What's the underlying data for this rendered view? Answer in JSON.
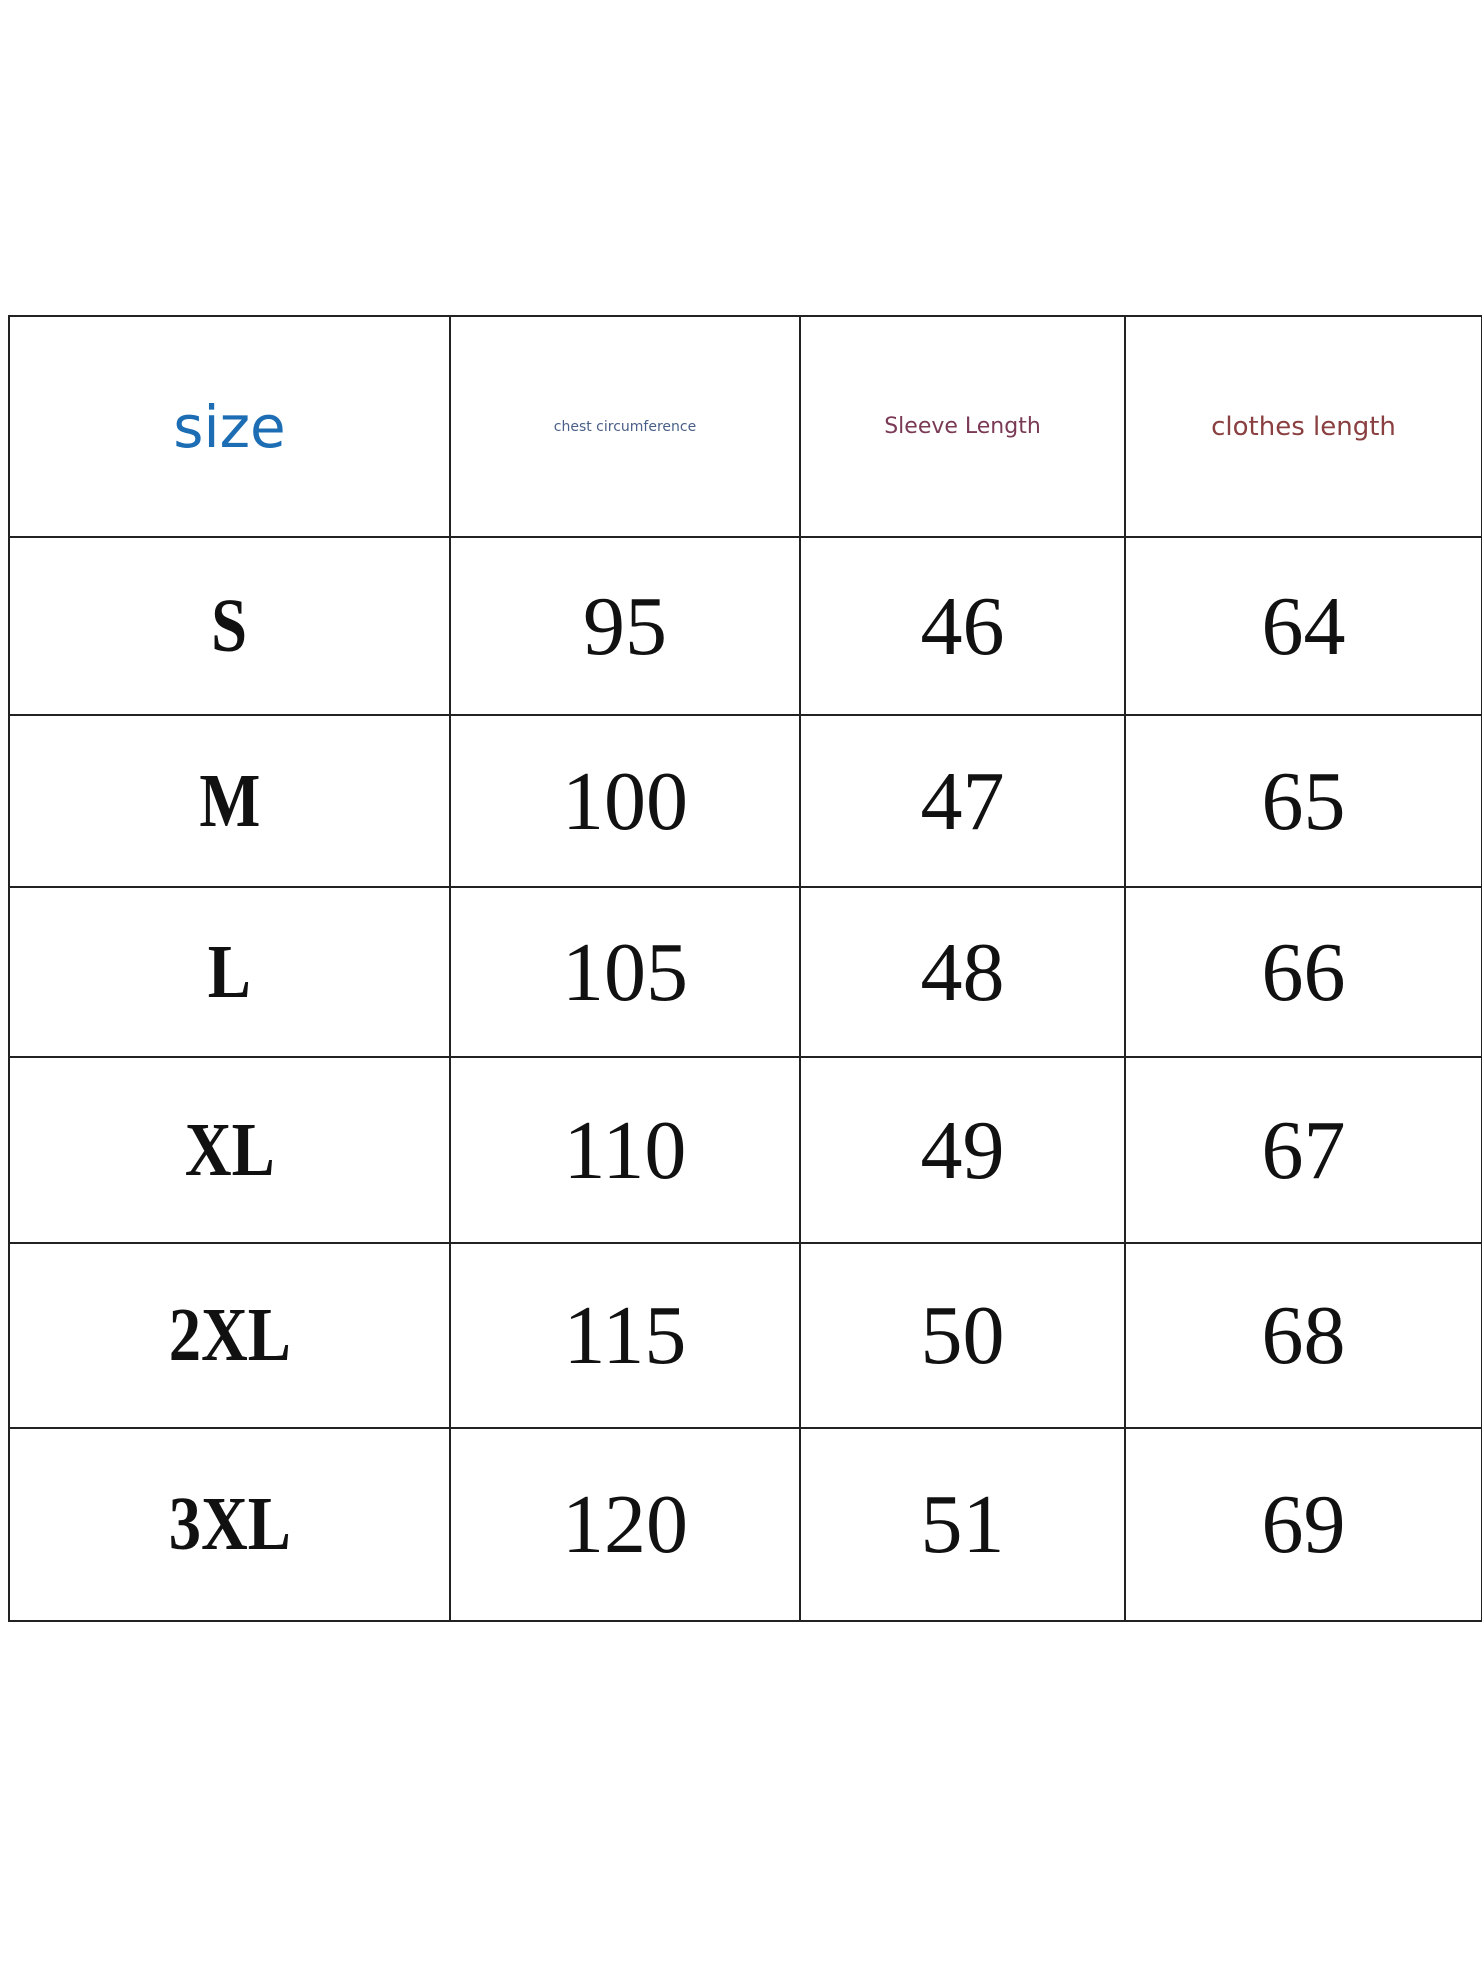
{
  "table": {
    "header": [
      "size",
      "chest circumference",
      "Sleeve Length",
      "clothes length"
    ],
    "rows": [
      [
        "S",
        95,
        46,
        64
      ],
      [
        "M",
        100,
        47,
        65
      ],
      [
        "L",
        105,
        48,
        66
      ],
      [
        "XL",
        110,
        49,
        67
      ],
      [
        "2XL",
        115,
        50,
        68
      ],
      [
        "3XL",
        120,
        51,
        69
      ]
    ]
  }
}
